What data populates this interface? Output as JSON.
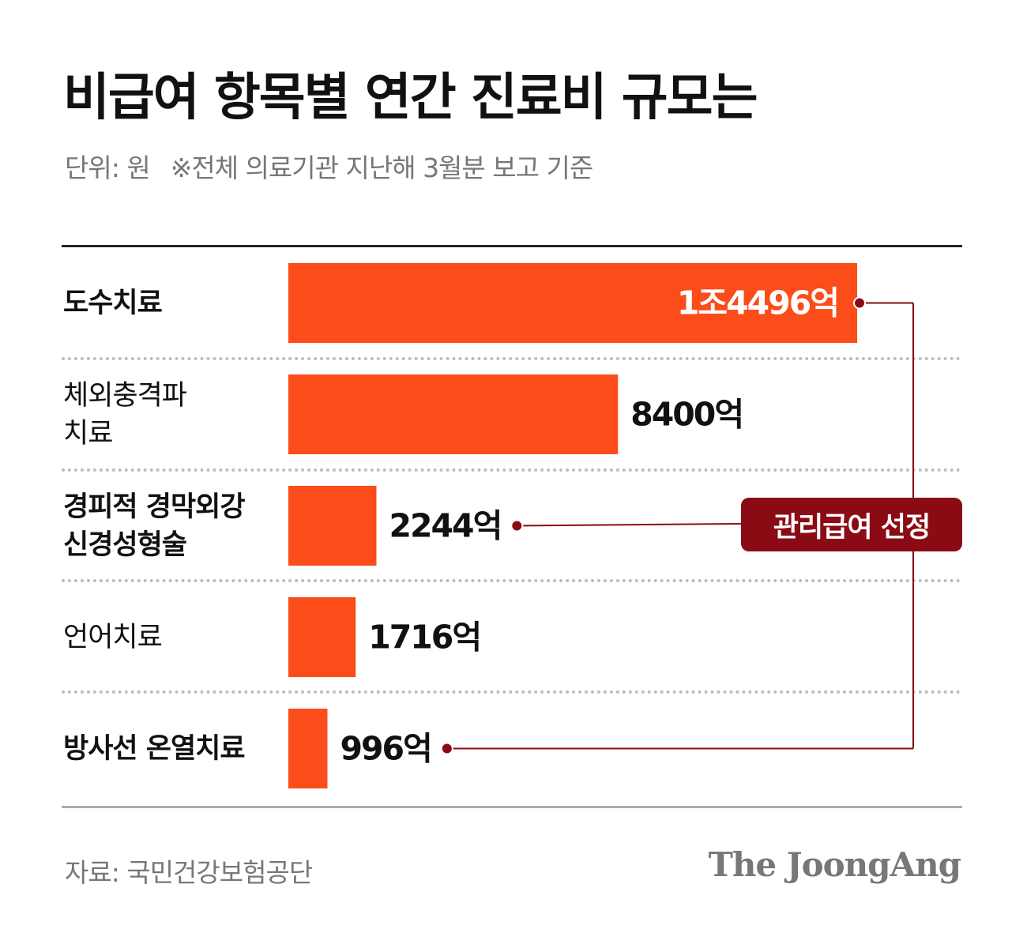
{
  "title": "비급여 항목별 연간 진료비 규모는",
  "subtitle": {
    "unit": "단위: 원",
    "note": "※전체 의료기관 지난해 3월분 보고 기준"
  },
  "colors": {
    "bar": "#fb4c1a",
    "callout": "#8b0b14",
    "text": "#111111",
    "muted": "#777777"
  },
  "callout": "관리급여 선정",
  "source": "자료: 국민건강보험공단",
  "brand": "The JoongAng",
  "chart_data": {
    "type": "bar",
    "orientation": "horizontal",
    "unit": "원",
    "categories": [
      "도수치료",
      "체외충격파 치료",
      "경피적 경막외강 신경성형술",
      "언어치료",
      "방사선 온열치료"
    ],
    "category_lines": [
      [
        "도수치료"
      ],
      [
        "체외충격파",
        "치료"
      ],
      [
        "경피적 경막외강",
        "신경성형술"
      ],
      [
        "언어치료"
      ],
      [
        "방사선 온열치료"
      ]
    ],
    "values": [
      14496,
      8400,
      2244,
      1716,
      996
    ],
    "value_labels": [
      "1조4496억",
      "8400억",
      "2244억",
      "1716억",
      "996억"
    ],
    "bold_categories": [
      true,
      false,
      true,
      false,
      true
    ],
    "highlighted": [
      true,
      false,
      true,
      false,
      true
    ],
    "value_label_inside": [
      true,
      false,
      false,
      false,
      false
    ]
  }
}
